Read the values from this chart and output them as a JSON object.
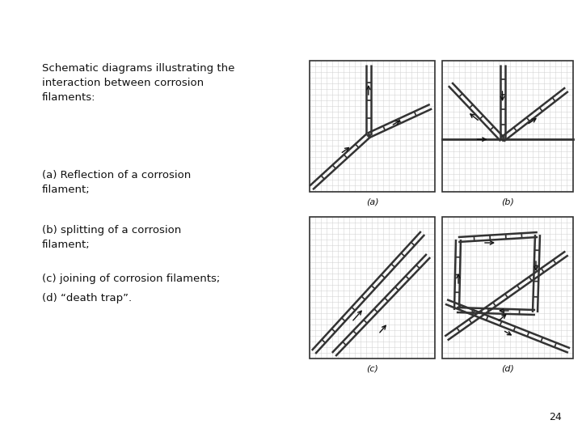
{
  "bg_color": "#ffffff",
  "text_color": "#111111",
  "title_text": "Schematic diagrams illustrating the\ninteraction between corrosion\nfilaments:",
  "caption_a": "(a) Reflection of a corrosion\nfilament;",
  "caption_b": "(b) splitting of a corrosion\nfilament;",
  "caption_c": "(c) joining of corrosion filaments;",
  "caption_d": "(d) “death trap”.",
  "page_number": "24",
  "label_a": "(a)",
  "label_b": "(b)",
  "label_c": "(c)",
  "label_d": "(d)",
  "box_color": "#333333",
  "filament_color": "#333333",
  "arrow_color": "#111111",
  "grid_color": "#cccccc"
}
